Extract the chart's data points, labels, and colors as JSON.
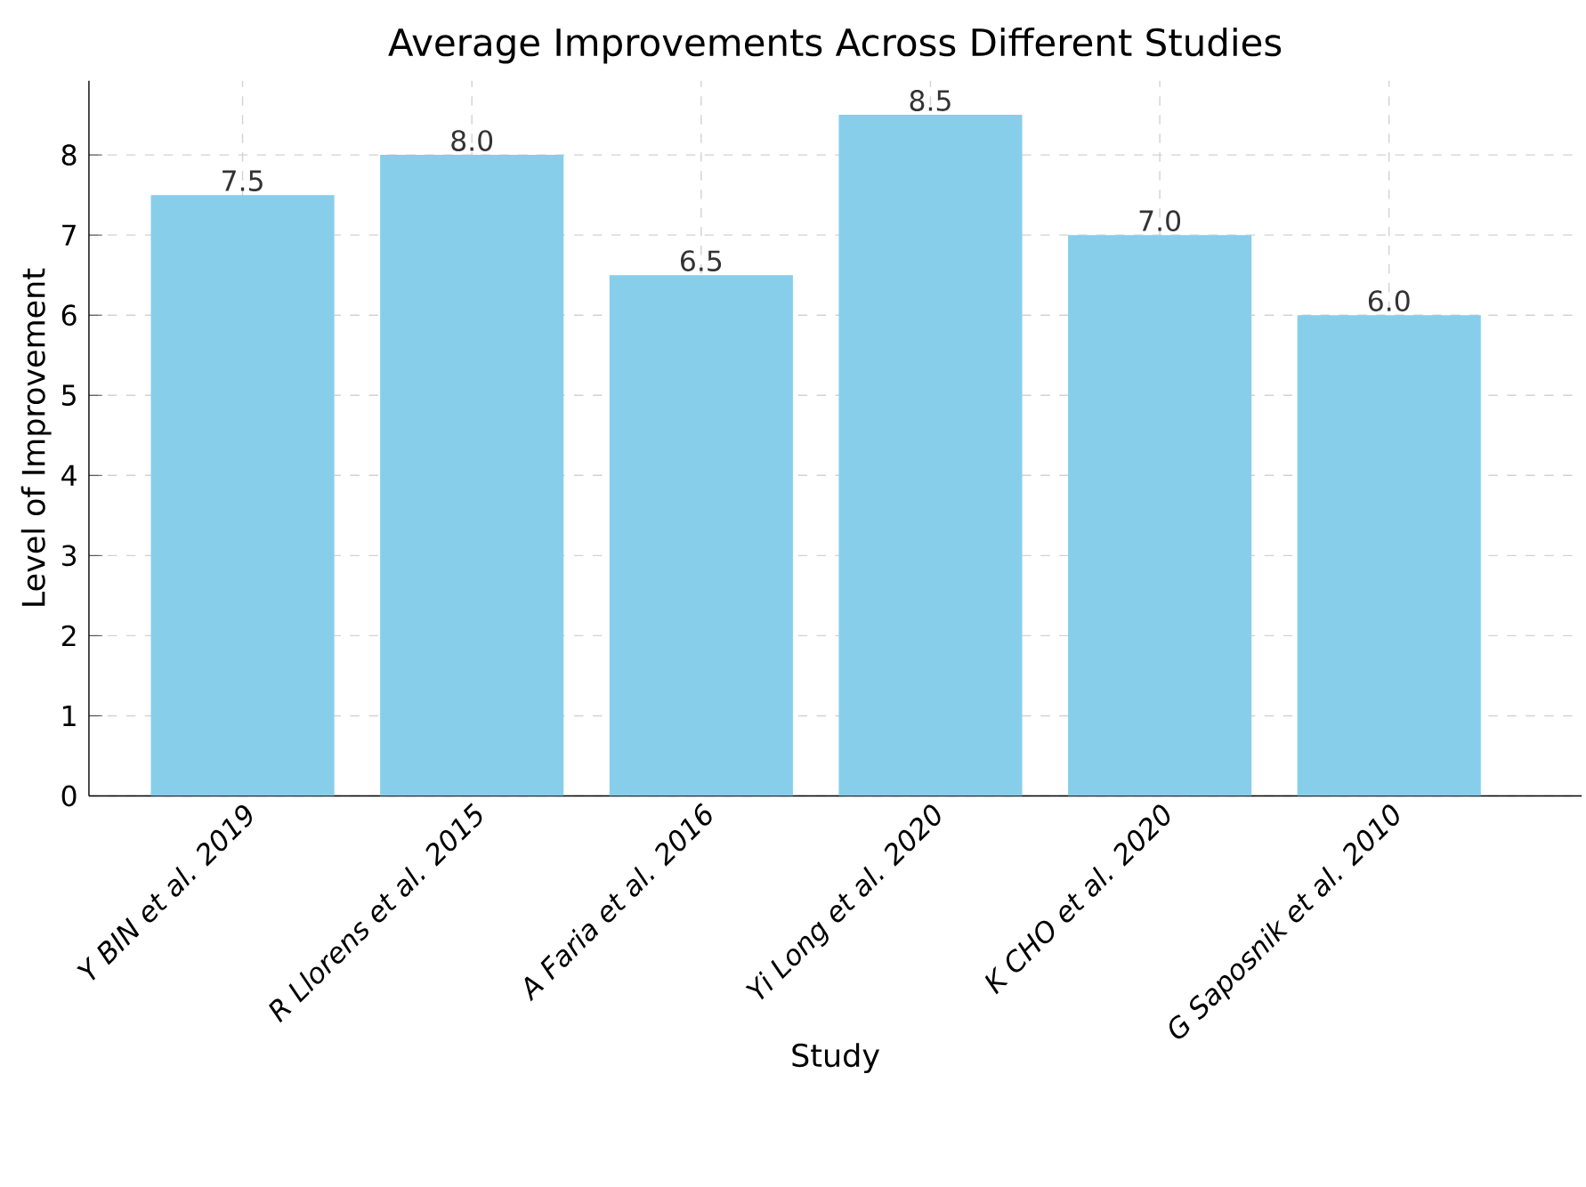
{
  "chart_data": {
    "type": "bar",
    "title": "Average Improvements Across Different Studies",
    "xlabel": "Study",
    "ylabel": "Level of Improvement",
    "categories": [
      "Y BIN et al. 2019",
      "R Llorens et al. 2015",
      "A Faria et al. 2016",
      "Yi Long et al. 2020",
      "K CHO et al. 2020",
      "G Saposnik et al. 2010"
    ],
    "values": [
      7.5,
      8.0,
      6.5,
      8.5,
      7.0,
      6.0
    ],
    "value_labels": [
      "7.5",
      "8.0",
      "6.5",
      "8.5",
      "7.0",
      "6.0"
    ],
    "color": "#87ceeb",
    "grid": true,
    "ylim": [
      0,
      8.925
    ],
    "yticks": [
      0,
      1,
      2,
      3,
      4,
      5,
      6,
      7,
      8
    ]
  }
}
